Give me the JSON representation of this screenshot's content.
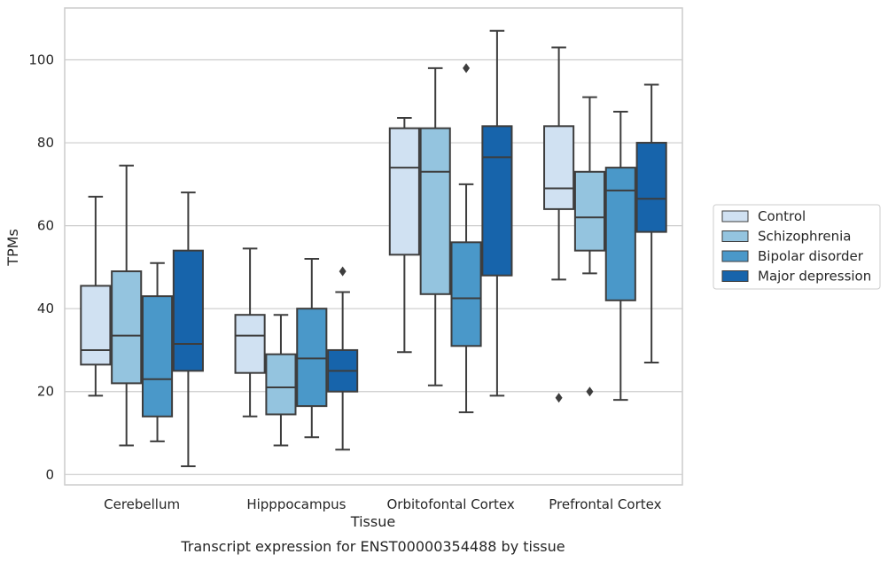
{
  "chart_data": {
    "type": "box",
    "xlabel": "Tissue",
    "ylabel": "TPMs",
    "caption": "Transcript expression for ENST00000354488 by tissue",
    "ylim": [
      -2.5,
      112.5
    ],
    "yticks": [
      0,
      20,
      40,
      60,
      80,
      100
    ],
    "grid": "horizontal",
    "legend_position": "right",
    "categories": [
      "Cerebellum",
      "Hipppocampus",
      "Orbitofontal Cortex",
      "Prefrontal Cortex"
    ],
    "series": [
      {
        "name": "Control",
        "color": "#d0e1f2",
        "boxes": [
          {
            "whisker_low": 19,
            "q1": 26.5,
            "median": 30,
            "q3": 45.5,
            "whisker_high": 67,
            "outliers": []
          },
          {
            "whisker_low": 14,
            "q1": 24.5,
            "median": 33.5,
            "q3": 38.5,
            "whisker_high": 54.5,
            "outliers": []
          },
          {
            "whisker_low": 29.5,
            "q1": 53,
            "median": 74,
            "q3": 83.5,
            "whisker_high": 86,
            "outliers": []
          },
          {
            "whisker_low": 47,
            "q1": 64,
            "median": 69,
            "q3": 84,
            "whisker_high": 103,
            "outliers": [
              18.5
            ]
          }
        ]
      },
      {
        "name": "Schizophrenia",
        "color": "#94c4df",
        "boxes": [
          {
            "whisker_low": 7,
            "q1": 22,
            "median": 33.5,
            "q3": 49,
            "whisker_high": 74.5,
            "outliers": []
          },
          {
            "whisker_low": 7,
            "q1": 14.5,
            "median": 21,
            "q3": 29,
            "whisker_high": 38.5,
            "outliers": []
          },
          {
            "whisker_low": 21.5,
            "q1": 43.5,
            "median": 73,
            "q3": 83.5,
            "whisker_high": 98,
            "outliers": []
          },
          {
            "whisker_low": 48.5,
            "q1": 54,
            "median": 62,
            "q3": 73,
            "whisker_high": 91,
            "outliers": [
              20
            ]
          }
        ]
      },
      {
        "name": "Bipolar disorder",
        "color": "#4a98c9",
        "boxes": [
          {
            "whisker_low": 8,
            "q1": 14,
            "median": 23,
            "q3": 43,
            "whisker_high": 51,
            "outliers": []
          },
          {
            "whisker_low": 9,
            "q1": 16.5,
            "median": 28,
            "q3": 40,
            "whisker_high": 52,
            "outliers": []
          },
          {
            "whisker_low": 15,
            "q1": 31,
            "median": 42.5,
            "q3": 56,
            "whisker_high": 70,
            "outliers": [
              98
            ]
          },
          {
            "whisker_low": 18,
            "q1": 42,
            "median": 68.5,
            "q3": 74,
            "whisker_high": 87.5,
            "outliers": []
          }
        ]
      },
      {
        "name": "Major depression",
        "color": "#1764ab",
        "boxes": [
          {
            "whisker_low": 2,
            "q1": 25,
            "median": 31.5,
            "q3": 54,
            "whisker_high": 68,
            "outliers": []
          },
          {
            "whisker_low": 6,
            "q1": 20,
            "median": 25,
            "q3": 30,
            "whisker_high": 44,
            "outliers": [
              49
            ]
          },
          {
            "whisker_low": 19,
            "q1": 48,
            "median": 76.5,
            "q3": 84,
            "whisker_high": 107,
            "outliers": []
          },
          {
            "whisker_low": 27,
            "q1": 58.5,
            "median": 66.5,
            "q3": 80,
            "whisker_high": 94,
            "outliers": []
          }
        ]
      }
    ]
  }
}
